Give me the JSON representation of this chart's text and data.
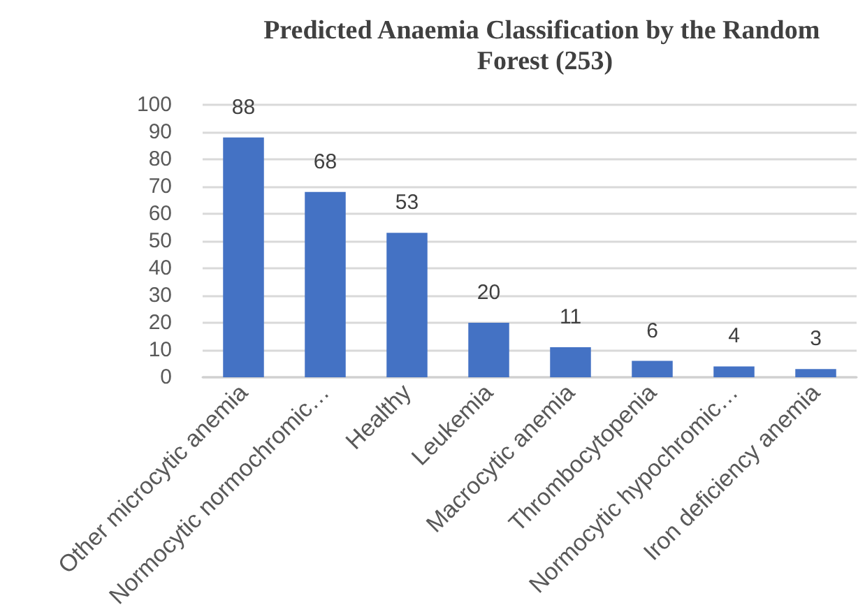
{
  "chart_data": {
    "type": "bar",
    "title": "Predicted Anaemia Classification by the Random Forest (253)",
    "categories": [
      "Other microcytic anemia",
      "Normocytic normochromic…",
      "Healthy",
      "Leukemia",
      "Macrocytic anemia",
      "Thrombocytopenia",
      "Normocytic hypochromic…",
      "Iron deficiency anemia"
    ],
    "values": [
      88,
      68,
      53,
      20,
      11,
      6,
      4,
      3
    ],
    "color": "#4472c4",
    "ylim": [
      0,
      100
    ],
    "yticks": [
      0,
      10,
      20,
      30,
      40,
      50,
      60,
      70,
      80,
      90,
      100
    ],
    "grid": "y",
    "data_labels": true
  }
}
